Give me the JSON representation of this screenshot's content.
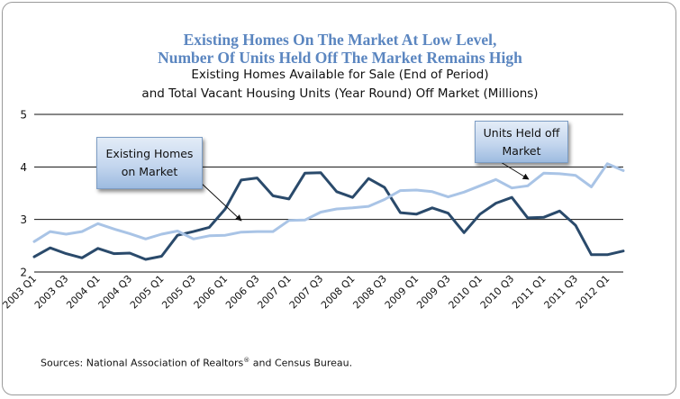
{
  "title_line1": "Existing Homes On The Market At Low Level,",
  "title_line2": "Number Of Units Held Off The Market Remains High",
  "subtitle_line1": "Existing Homes Available for Sale (End of Period)",
  "subtitle_line2": "and Total Vacant Housing Units (Year Round) Off Market (Millions)",
  "callout_existing": "Existing Homes\non Market",
  "callout_units": "Units Held off\nMarket",
  "source_prefix": "Sources: National Association of Realtors",
  "source_mark": "®",
  "source_suffix": " and Census Bureau.",
  "colors": {
    "existing": "#2a4a6b",
    "units": "#a9c4e6",
    "title": "#5b86c0"
  },
  "chart_data": {
    "type": "line",
    "ylim": [
      2,
      5
    ],
    "yticks": [
      "2",
      "3",
      "4",
      "5"
    ],
    "tick_labels": [
      "2003 Q1",
      "2003 Q3",
      "2004 Q1",
      "2004 Q3",
      "2005 Q1",
      "2005 Q3",
      "2006 Q1",
      "2006 Q3",
      "2007 Q1",
      "2007 Q3",
      "2008 Q1",
      "2008 Q3",
      "2009 Q1",
      "2009 Q3",
      "2010 Q1",
      "2010 Q3",
      "2011 Q1",
      "2011 Q3",
      "2012 Q1"
    ],
    "grid": "horizontal",
    "series": [
      {
        "key": "existing",
        "values": [
          2.29,
          2.46,
          2.35,
          2.27,
          2.45,
          2.35,
          2.36,
          2.24,
          2.3,
          2.7,
          2.77,
          2.85,
          3.2,
          3.75,
          3.79,
          3.45,
          3.39,
          3.88,
          3.89,
          3.53,
          3.42,
          3.78,
          3.61,
          3.13,
          3.1,
          3.22,
          3.12,
          2.75,
          3.1,
          3.31,
          3.42,
          3.03,
          3.04,
          3.16,
          2.89,
          2.33,
          2.33,
          2.4
        ]
      },
      {
        "key": "units",
        "values": [
          2.58,
          2.77,
          2.72,
          2.77,
          2.92,
          2.82,
          2.73,
          2.63,
          2.72,
          2.78,
          2.63,
          2.69,
          2.7,
          2.76,
          2.77,
          2.77,
          2.98,
          2.99,
          3.14,
          3.2,
          3.22,
          3.25,
          3.38,
          3.55,
          3.56,
          3.53,
          3.43,
          3.52,
          3.64,
          3.76,
          3.6,
          3.64,
          3.88,
          3.87,
          3.84,
          3.62,
          4.06,
          3.93
        ]
      }
    ]
  }
}
